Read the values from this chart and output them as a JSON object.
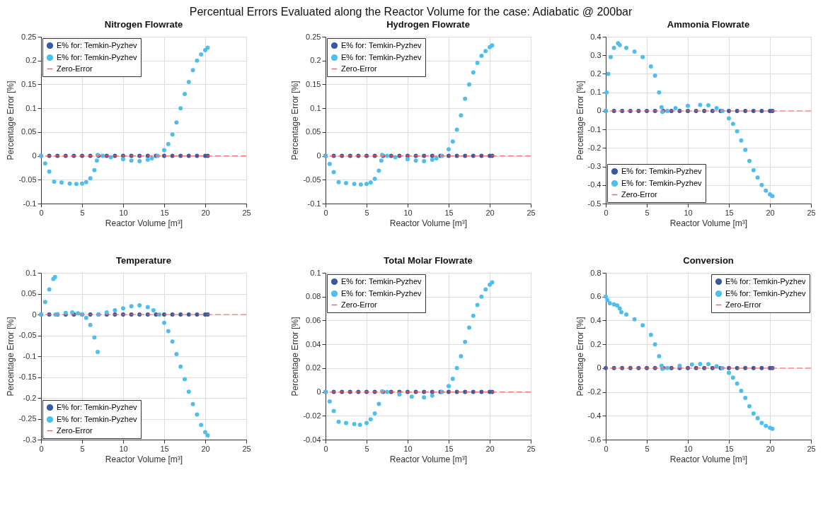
{
  "chart_data": [
    {
      "type": "scatter",
      "title": "Nitrogen Flowrate",
      "annotations": [
        "Percentual Errors Evaluated along the Reactor Volume for the case: Adiabatic @ 200bar"
      ],
      "xlabel": "Reactor Volume [m³]",
      "ylabel": "Percentage Error [%]",
      "xlim": [
        0,
        25
      ],
      "xticks": [
        0,
        5,
        10,
        15,
        20,
        25
      ],
      "ylim": [
        -0.1,
        0.25
      ],
      "yticks": [
        -0.1,
        -0.05,
        0,
        0.05,
        0.1,
        0.15,
        0.2,
        0.25
      ],
      "grid": true,
      "legend": "top left",
      "marker": "circle",
      "series": [
        {
          "name": "E% for: Temkin-Pyzhev",
          "color": "#3a5a9a",
          "x": [
            0,
            1,
            2,
            3,
            4,
            5,
            6,
            7,
            8,
            9,
            10,
            11,
            12,
            13,
            14,
            15,
            16,
            17,
            18,
            19,
            20,
            20.3
          ],
          "values": [
            0,
            0,
            0,
            0,
            0,
            0,
            0,
            0,
            0,
            0,
            0,
            0,
            0,
            0,
            0,
            0,
            0,
            0,
            0,
            0,
            0,
            0
          ]
        },
        {
          "name": "E% for: Temkin-Pyzhev",
          "color": "#4dbeee",
          "x": [
            0,
            0.5,
            1,
            1.6,
            2.5,
            3.5,
            4.3,
            5,
            5.5,
            6,
            6.5,
            6.8,
            6.9,
            7.5,
            8.5,
            10,
            11,
            12,
            13,
            13.5,
            14.2,
            15,
            15.5,
            16,
            16.5,
            17,
            17.5,
            18,
            18.5,
            19,
            19.5,
            20,
            20.3
          ],
          "values": [
            0,
            -0.016,
            -0.033,
            -0.054,
            -0.056,
            -0.058,
            -0.059,
            -0.058,
            -0.055,
            -0.047,
            -0.03,
            -0.01,
            0.002,
            0,
            -0.003,
            -0.007,
            -0.01,
            -0.011,
            -0.008,
            -0.005,
            0,
            0.012,
            0.025,
            0.045,
            0.07,
            0.1,
            0.13,
            0.155,
            0.18,
            0.2,
            0.213,
            0.222,
            0.227
          ]
        }
      ],
      "ref_lines": [
        {
          "axis": "y",
          "value": 0,
          "label": "Zero-Error",
          "color": "#ff6060",
          "line_style": "dashed"
        }
      ]
    },
    {
      "type": "scatter",
      "title": "Hydrogen Flowrate",
      "xlabel": "Reactor Volume [m³]",
      "ylabel": "Percentage Error [%]",
      "xlim": [
        0,
        25
      ],
      "xticks": [
        0,
        5,
        10,
        15,
        20,
        25
      ],
      "ylim": [
        -0.1,
        0.25
      ],
      "yticks": [
        -0.1,
        -0.05,
        0,
        0.05,
        0.1,
        0.15,
        0.2,
        0.25
      ],
      "grid": true,
      "legend": "top left",
      "marker": "circle",
      "series": [
        {
          "name": "E% for: Temkin-Pyzhev",
          "color": "#3a5a9a",
          "x": [
            0,
            1,
            2,
            3,
            4,
            5,
            6,
            7,
            8,
            9,
            10,
            11,
            12,
            13,
            14,
            15,
            16,
            17,
            18,
            19,
            20,
            20.3
          ],
          "values": [
            0,
            0,
            0,
            0,
            0,
            0,
            0,
            0,
            0,
            0,
            0,
            0,
            0,
            0,
            0,
            0,
            0,
            0,
            0,
            0,
            0,
            0
          ]
        },
        {
          "name": "E% for: Temkin-Pyzhev",
          "color": "#4dbeee",
          "x": [
            0,
            0.5,
            1,
            1.6,
            2.5,
            3.5,
            4.3,
            5,
            5.5,
            6,
            6.5,
            6.8,
            6.9,
            7.5,
            8.5,
            10,
            11,
            12,
            13,
            13.5,
            14.2,
            15,
            15.5,
            16,
            16.5,
            17,
            17.5,
            18,
            18.5,
            19,
            19.5,
            20,
            20.3
          ],
          "values": [
            0,
            -0.017,
            -0.034,
            -0.055,
            -0.057,
            -0.059,
            -0.06,
            -0.059,
            -0.056,
            -0.048,
            -0.031,
            -0.01,
            0.002,
            0,
            -0.003,
            -0.007,
            -0.01,
            -0.011,
            -0.008,
            -0.005,
            0,
            0.014,
            0.03,
            0.055,
            0.085,
            0.12,
            0.15,
            0.175,
            0.195,
            0.21,
            0.22,
            0.228,
            0.232
          ]
        }
      ],
      "ref_lines": [
        {
          "axis": "y",
          "value": 0,
          "label": "Zero-Error",
          "color": "#ff6060",
          "line_style": "dashed"
        }
      ]
    },
    {
      "type": "scatter",
      "title": "Ammonia Flowrate",
      "xlabel": "Reactor Volume [m³]",
      "ylabel": "Percentage Error [%]",
      "xlim": [
        0,
        25
      ],
      "xticks": [
        0,
        5,
        10,
        15,
        20,
        25
      ],
      "ylim": [
        -0.5,
        0.4
      ],
      "yticks": [
        -0.5,
        -0.4,
        -0.3,
        -0.2,
        -0.1,
        0,
        0.1,
        0.2,
        0.3,
        0.4
      ],
      "grid": true,
      "legend": "bottom left",
      "marker": "circle",
      "series": [
        {
          "name": "E% for: Temkin-Pyzhev",
          "color": "#3a5a9a",
          "x": [
            0,
            1,
            2,
            3,
            4,
            5,
            6,
            7,
            8,
            9,
            10,
            11,
            12,
            13,
            14,
            15,
            16,
            17,
            18,
            19,
            20,
            20.3
          ],
          "values": [
            0,
            0,
            0,
            0,
            0,
            0,
            0,
            0,
            0,
            0,
            0,
            0,
            0,
            0,
            0,
            0,
            0,
            0,
            0,
            0,
            0,
            0
          ]
        },
        {
          "name": "E% for: Temkin-Pyzhev",
          "color": "#4dbeee",
          "x": [
            0,
            0.1,
            0.3,
            0.6,
            1,
            1.5,
            1.7,
            2.5,
            3.5,
            4.5,
            5.5,
            6,
            6.5,
            6.8,
            6.9,
            7.5,
            8.5,
            10,
            11.5,
            12.5,
            13.5,
            14.2,
            15,
            15.5,
            16,
            16.5,
            17,
            17.5,
            18,
            18.5,
            19,
            19.5,
            20,
            20.3
          ],
          "values": [
            0,
            0.1,
            0.2,
            0.29,
            0.34,
            0.365,
            0.355,
            0.34,
            0.32,
            0.29,
            0.24,
            0.19,
            0.1,
            0.02,
            -0.005,
            0,
            0.015,
            0.027,
            0.032,
            0.03,
            0.015,
            0,
            -0.04,
            -0.07,
            -0.11,
            -0.16,
            -0.21,
            -0.27,
            -0.32,
            -0.36,
            -0.4,
            -0.43,
            -0.45,
            -0.46
          ]
        }
      ],
      "ref_lines": [
        {
          "axis": "y",
          "value": 0,
          "label": "Zero-Error",
          "color": "#ff6060",
          "line_style": "dashed"
        }
      ]
    },
    {
      "type": "scatter",
      "title": "Temperature",
      "xlabel": "Reactor Volume [m³]",
      "ylabel": "Percentage Error [%]",
      "xlim": [
        0,
        25
      ],
      "xticks": [
        0,
        5,
        10,
        15,
        20,
        25
      ],
      "ylim": [
        -0.3,
        0.1
      ],
      "yticks": [
        -0.3,
        -0.25,
        -0.2,
        -0.15,
        -0.1,
        -0.05,
        0,
        0.05,
        0.1
      ],
      "grid": true,
      "legend": "bottom left",
      "marker": "circle",
      "series": [
        {
          "name": "E% for: Temkin-Pyzhev",
          "color": "#3a5a9a",
          "x": [
            0,
            1,
            2,
            3,
            4,
            5,
            6,
            7,
            8,
            9,
            10,
            11,
            12,
            13,
            14,
            15,
            16,
            17,
            18,
            19,
            20,
            20.3
          ],
          "values": [
            0,
            0,
            0,
            0,
            0,
            0,
            0,
            0,
            0,
            0,
            0,
            0,
            0,
            0,
            0,
            0,
            0,
            0,
            0,
            0,
            0,
            0
          ]
        },
        {
          "name": "E% for: Temkin-Pyzhev",
          "color": "#4dbeee",
          "x": [
            0,
            0.5,
            1,
            1.5,
            1.7,
            1.75,
            2,
            3,
            3.8,
            4.5,
            5,
            5.5,
            6,
            6.5,
            6.9,
            7,
            8,
            9,
            10,
            11,
            12,
            13,
            13.7,
            14.4,
            15,
            15.5,
            16,
            16.5,
            17,
            17.5,
            18,
            18.5,
            19,
            19.5,
            20,
            20.3
          ],
          "values": [
            0,
            0.03,
            0.06,
            0.085,
            0.09,
            0,
            0.001,
            0.004,
            0.005,
            0.003,
            0,
            -0.008,
            -0.025,
            -0.055,
            -0.09,
            0,
            0.005,
            0.01,
            0.015,
            0.02,
            0.022,
            0.018,
            0.01,
            0,
            -0.02,
            -0.04,
            -0.065,
            -0.095,
            -0.125,
            -0.155,
            -0.185,
            -0.215,
            -0.24,
            -0.265,
            -0.282,
            -0.29
          ]
        }
      ],
      "ref_lines": [
        {
          "axis": "y",
          "value": 0,
          "label": "Zero-Error",
          "color": "#ff6060",
          "line_style": "dashed"
        }
      ]
    },
    {
      "type": "scatter",
      "title": "Total Molar Flowrate",
      "xlabel": "Reactor Volume [m³]",
      "ylabel": "Percentage Error [%]",
      "xlim": [
        0,
        25
      ],
      "xticks": [
        0,
        5,
        10,
        15,
        20,
        25
      ],
      "ylim": [
        -0.04,
        0.1
      ],
      "yticks": [
        -0.04,
        -0.02,
        0,
        0.02,
        0.04,
        0.06,
        0.08,
        0.1
      ],
      "grid": true,
      "legend": "top left",
      "marker": "circle",
      "series": [
        {
          "name": "E% for: Temkin-Pyzhev",
          "color": "#3a5a9a",
          "x": [
            0,
            1,
            2,
            3,
            4,
            5,
            6,
            7,
            8,
            9,
            10,
            11,
            12,
            13,
            14,
            15,
            16,
            17,
            18,
            19,
            20,
            20.3
          ],
          "values": [
            0,
            0,
            0,
            0,
            0,
            0,
            0,
            0,
            0,
            0,
            0,
            0,
            0,
            0,
            0,
            0,
            0,
            0,
            0,
            0,
            0,
            0
          ]
        },
        {
          "name": "E% for: Temkin-Pyzhev",
          "color": "#4dbeee",
          "x": [
            0,
            0.5,
            1,
            1.6,
            2.5,
            3.5,
            4.2,
            5,
            5.5,
            6,
            6.5,
            6.9,
            7.5,
            9,
            10.5,
            12,
            13,
            14.2,
            15,
            15.5,
            16,
            16.5,
            17,
            17.5,
            18,
            18.5,
            19,
            19.5,
            20,
            20.3
          ],
          "values": [
            0,
            -0.008,
            -0.016,
            -0.025,
            -0.026,
            -0.027,
            -0.0275,
            -0.026,
            -0.023,
            -0.018,
            -0.01,
            0.0005,
            0,
            -0.002,
            -0.004,
            -0.0045,
            -0.003,
            0,
            0.005,
            0.011,
            0.02,
            0.03,
            0.042,
            0.054,
            0.064,
            0.073,
            0.08,
            0.086,
            0.09,
            0.092
          ]
        }
      ],
      "ref_lines": [
        {
          "axis": "y",
          "value": 0,
          "label": "Zero-Error",
          "color": "#ff6060",
          "line_style": "dashed"
        }
      ]
    },
    {
      "type": "scatter",
      "title": "Conversion",
      "xlabel": "Reactor Volume [m³]",
      "ylabel": "Percentage Error [%]",
      "xlim": [
        0,
        25
      ],
      "xticks": [
        0,
        5,
        10,
        15,
        20,
        25
      ],
      "ylim": [
        -0.6,
        0.8
      ],
      "yticks": [
        -0.6,
        -0.4,
        -0.2,
        0,
        0.2,
        0.4,
        0.6,
        0.8
      ],
      "grid": true,
      "legend": "top right",
      "marker": "circle",
      "series": [
        {
          "name": "E% for: Temkin-Pyzhev",
          "color": "#3a5a9a",
          "x": [
            0,
            1,
            2,
            3,
            4,
            5,
            6,
            7,
            8,
            9,
            10,
            11,
            12,
            13,
            14,
            15,
            16,
            17,
            18,
            19,
            20,
            20.3
          ],
          "values": [
            0,
            0,
            0,
            0,
            0,
            0,
            0,
            0,
            0,
            0,
            0,
            0,
            0,
            0,
            0,
            0,
            0,
            0,
            0,
            0,
            0,
            0
          ]
        },
        {
          "name": "E% for: Temkin-Pyzhev",
          "color": "#4dbeee",
          "x": [
            0,
            0.2,
            0.5,
            1,
            1.4,
            1.7,
            1.9,
            2.5,
            3.5,
            4.5,
            5.5,
            6,
            6.5,
            6.8,
            6.9,
            7.5,
            9,
            10.5,
            11.5,
            12.5,
            13.5,
            14.2,
            15,
            15.5,
            16,
            16.5,
            17,
            17.5,
            18,
            18.5,
            19,
            19.5,
            20,
            20.3
          ],
          "values": [
            0.6,
            0.57,
            0.545,
            0.535,
            0.525,
            0.5,
            0.47,
            0.45,
            0.41,
            0.36,
            0.28,
            0.2,
            0.1,
            0.02,
            -0.005,
            0,
            0.02,
            0.03,
            0.035,
            0.033,
            0.015,
            0,
            -0.04,
            -0.08,
            -0.13,
            -0.19,
            -0.25,
            -0.32,
            -0.38,
            -0.42,
            -0.46,
            -0.485,
            -0.5,
            -0.51
          ]
        }
      ],
      "ref_lines": [
        {
          "axis": "y",
          "value": 0,
          "label": "Zero-Error",
          "color": "#ff6060",
          "line_style": "dashed"
        }
      ]
    }
  ]
}
